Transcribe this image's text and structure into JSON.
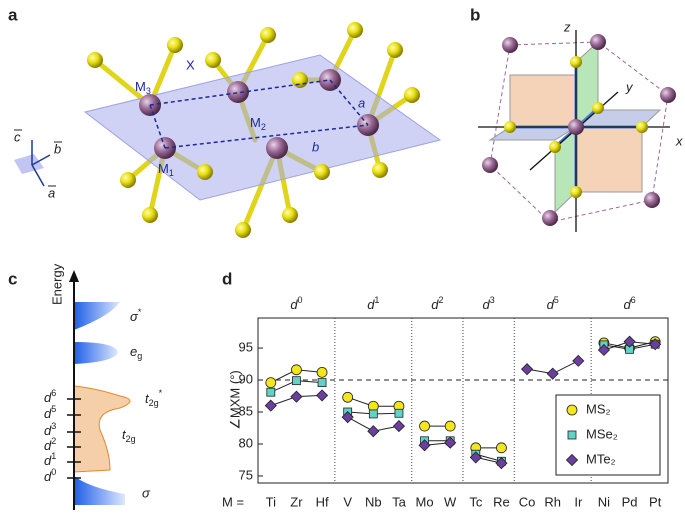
{
  "panel_a": {
    "label": "a",
    "m3": [
      "M",
      "3"
    ],
    "m2": [
      "M",
      "2"
    ],
    "m1": [
      "M",
      "1"
    ],
    "x": "X",
    "lattice_a": "a",
    "lattice_b": "b",
    "vectors": [
      "c",
      "b",
      "a"
    ]
  },
  "panel_b": {
    "label": "b",
    "axes": [
      "x",
      "y",
      "z"
    ]
  },
  "panel_c": {
    "label": "c",
    "axis_label": "Energy",
    "levels": [
      [
        "d",
        "6"
      ],
      [
        "d",
        "5"
      ],
      [
        "d",
        "3"
      ],
      [
        "d",
        "2"
      ],
      [
        "d",
        "1"
      ],
      [
        "d",
        "0"
      ]
    ],
    "bands": [
      [
        "σ",
        "*"
      ],
      [
        "e",
        "g"
      ],
      [
        "t",
        "2g",
        "*"
      ],
      [
        "t",
        "2g"
      ],
      [
        "σ"
      ]
    ]
  },
  "chart_data": {
    "type": "line",
    "panel_label": "d",
    "prefix": "M =",
    "ylabel": "∠MXM (°)",
    "groups": [
      {
        "label": [
          "d",
          "0"
        ],
        "categories": [
          "Ti",
          "Zr",
          "Hf"
        ]
      },
      {
        "label": [
          "d",
          "1"
        ],
        "categories": [
          "V",
          "Nb",
          "Ta"
        ]
      },
      {
        "label": [
          "d",
          "2"
        ],
        "categories": [
          "Mo",
          "W"
        ]
      },
      {
        "label": [
          "d",
          "3"
        ],
        "categories": [
          "Tc",
          "Re"
        ]
      },
      {
        "label": [
          "d",
          "5"
        ],
        "categories": [
          "Co",
          "Rh",
          "Ir"
        ]
      },
      {
        "label": [
          "d",
          "6"
        ],
        "categories": [
          "Ni",
          "Pd",
          "Pt"
        ]
      }
    ],
    "series": [
      {
        "name": "MS₂",
        "color": "#f4e61e",
        "marker": "circle",
        "values": [
          89.6,
          91.6,
          91.2,
          87.3,
          85.9,
          85.9,
          82.8,
          82.8,
          79.4,
          79.4,
          null,
          null,
          null,
          95.8,
          95.0,
          96.0
        ]
      },
      {
        "name": "MSe₂",
        "color": "#5fd3c6",
        "marker": "square",
        "values": [
          88.1,
          89.9,
          89.6,
          85.0,
          84.7,
          84.8,
          80.5,
          80.5,
          78.4,
          77.3,
          null,
          null,
          null,
          95.5,
          94.8,
          95.6
        ]
      },
      {
        "name": "MTe₂",
        "color": "#6b3fa0",
        "marker": "diamond",
        "values": [
          86.0,
          87.4,
          87.6,
          84.2,
          82.0,
          82.8,
          79.8,
          80.2,
          77.9,
          77.0,
          91.7,
          91.0,
          93.0,
          94.7,
          96.0,
          95.6
        ]
      }
    ],
    "ylim": [
      73.9,
      99.7
    ],
    "yticks": [
      75,
      80,
      85,
      90,
      95
    ],
    "hline": 90,
    "legend": "lower right"
  }
}
